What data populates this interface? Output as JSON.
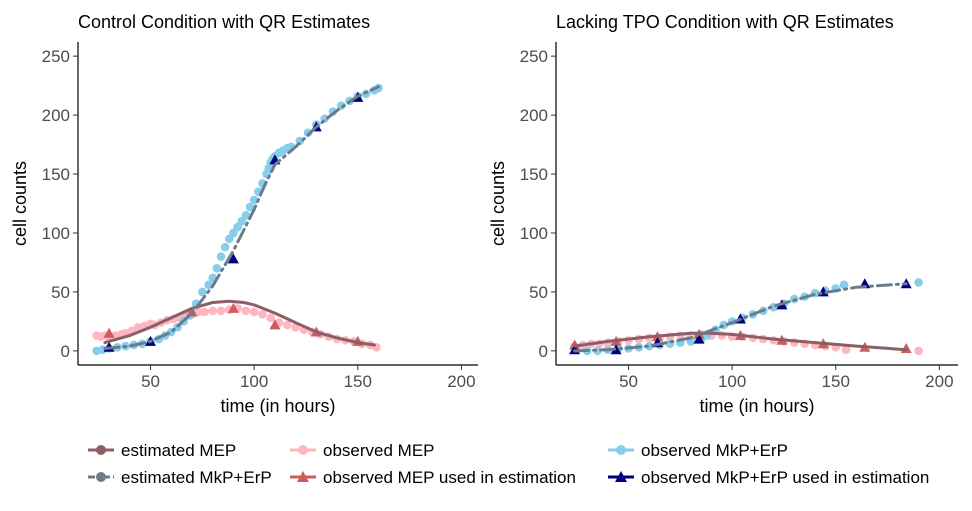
{
  "figure": {
    "legend": {
      "items": [
        {
          "key": "est_mep",
          "label": "estimated MEP"
        },
        {
          "key": "obs_mep",
          "label": "observed MEP"
        },
        {
          "key": "obs_mkp",
          "label": "observed MkP+ErP"
        },
        {
          "key": "est_mkp",
          "label": "estimated MkP+ErP"
        },
        {
          "key": "used_mep",
          "label": "observed MEP used in estimation"
        },
        {
          "key": "used_mkp",
          "label": "observed MkP+ErP used in estimation"
        }
      ]
    }
  },
  "chart_data": [
    {
      "type": "scatter",
      "title": "Control Condition with QR Estimates",
      "xlabel": "time (in hours)",
      "ylabel": "cell counts",
      "xlim": [
        15,
        208
      ],
      "ylim": [
        -12,
        262
      ],
      "xticks": [
        50,
        100,
        150,
        200
      ],
      "yticks": [
        0,
        50,
        100,
        150,
        200,
        250
      ],
      "series": [
        {
          "key": "obs_mep",
          "name": "observed MEP",
          "color": "#ffb6c1",
          "marker": "circle",
          "x": [
            24,
            26,
            28,
            30,
            33,
            36,
            38,
            41,
            44,
            47,
            50,
            52,
            55,
            58,
            61,
            64,
            67,
            70,
            73,
            76,
            80,
            84,
            88,
            92,
            96,
            100,
            104,
            108,
            112,
            116,
            120,
            124,
            128,
            132,
            136,
            140,
            144,
            148,
            152,
            156,
            159
          ],
          "y": [
            13,
            12,
            13,
            12,
            13,
            14,
            15,
            17,
            20,
            21,
            23,
            22,
            24,
            26,
            27,
            28,
            30,
            31,
            33,
            33,
            34,
            34,
            35,
            36,
            34,
            33,
            31,
            28,
            24,
            22,
            20,
            18,
            16,
            14,
            12,
            10,
            9,
            8,
            6,
            5,
            3
          ]
        },
        {
          "key": "obs_mkp",
          "name": "observed MkP+ErP",
          "color": "#87ceeb",
          "marker": "circle",
          "x": [
            24,
            27,
            30,
            34,
            38,
            42,
            46,
            50,
            54,
            57,
            60,
            63,
            66,
            69,
            72,
            75,
            78,
            80,
            82,
            84,
            86,
            88,
            90,
            92,
            94,
            96,
            98,
            100,
            102,
            104,
            106,
            107,
            108,
            109,
            110,
            112,
            114,
            116,
            118,
            122,
            126,
            130,
            134,
            138,
            142,
            146,
            150,
            154,
            158,
            160
          ],
          "y": [
            0,
            1,
            2,
            3,
            4,
            5,
            6,
            8,
            10,
            13,
            16,
            20,
            25,
            30,
            40,
            50,
            56,
            62,
            70,
            80,
            88,
            95,
            100,
            105,
            110,
            115,
            122,
            128,
            135,
            142,
            150,
            155,
            160,
            163,
            165,
            168,
            170,
            172,
            173,
            178,
            185,
            192,
            197,
            203,
            208,
            212,
            216,
            218,
            221,
            223
          ]
        },
        {
          "key": "used_mep",
          "name": "observed MEP used in estimation",
          "color": "#cd5c5c",
          "marker": "triangle",
          "x": [
            30,
            70,
            90,
            110,
            130,
            150
          ],
          "y": [
            15,
            33,
            36,
            22,
            16,
            8
          ]
        },
        {
          "key": "used_mkp",
          "name": "observed MkP+ErP used in estimation",
          "color": "#000080",
          "marker": "triangle",
          "x": [
            30,
            50,
            90,
            110,
            130,
            150
          ],
          "y": [
            3,
            8,
            78,
            162,
            190,
            215
          ]
        },
        {
          "key": "est_mep",
          "name": "estimated MEP",
          "color": "#8b5f65",
          "line": "solid",
          "x": [
            28,
            40,
            50,
            60,
            70,
            80,
            88,
            95,
            100,
            110,
            120,
            130,
            140,
            150,
            158
          ],
          "y": [
            7,
            13,
            20,
            28,
            36,
            41,
            42,
            41,
            39,
            32,
            24,
            16,
            11,
            7,
            5
          ]
        },
        {
          "key": "est_mkp",
          "name": "estimated MkP+ErP",
          "color": "#6c7b8b",
          "line": "dashdot",
          "x": [
            28,
            40,
            50,
            60,
            70,
            80,
            90,
            100,
            105,
            110,
            120,
            130,
            140,
            150,
            160
          ],
          "y": [
            2,
            4,
            8,
            16,
            32,
            55,
            85,
            120,
            140,
            158,
            173,
            190,
            204,
            216,
            224
          ]
        }
      ]
    },
    {
      "type": "scatter",
      "title": "Lacking TPO Condition with QR Estimates",
      "xlabel": "time (in hours)",
      "ylabel": "cell counts",
      "xlim": [
        15,
        209
      ],
      "ylim": [
        -12,
        262
      ],
      "xticks": [
        50,
        100,
        150,
        200
      ],
      "yticks": [
        0,
        50,
        100,
        150,
        200,
        250
      ],
      "series": [
        {
          "key": "obs_mep",
          "name": "observed MEP",
          "color": "#ffb6c1",
          "marker": "circle",
          "x": [
            24,
            28,
            32,
            36,
            40,
            45,
            50,
            55,
            60,
            65,
            70,
            75,
            80,
            85,
            90,
            95,
            100,
            105,
            110,
            115,
            120,
            125,
            130,
            135,
            140,
            145,
            150,
            155,
            190
          ],
          "y": [
            4,
            5,
            6,
            6,
            7,
            8,
            9,
            10,
            11,
            11,
            12,
            13,
            13,
            14,
            13,
            13,
            12,
            12,
            11,
            10,
            9,
            8,
            7,
            6,
            5,
            4,
            3,
            1,
            0
          ]
        },
        {
          "key": "obs_mkp",
          "name": "observed MkP+ErP",
          "color": "#87ceeb",
          "marker": "circle",
          "x": [
            30,
            35,
            40,
            45,
            50,
            55,
            60,
            65,
            70,
            75,
            80,
            85,
            88,
            92,
            96,
            100,
            105,
            110,
            115,
            120,
            125,
            130,
            135,
            140,
            145,
            150,
            154,
            190
          ],
          "y": [
            0,
            0,
            1,
            2,
            2,
            3,
            4,
            5,
            6,
            7,
            8,
            10,
            13,
            18,
            22,
            25,
            28,
            31,
            34,
            37,
            40,
            44,
            46,
            49,
            51,
            53,
            56,
            58
          ]
        },
        {
          "key": "used_mep",
          "name": "observed MEP used in estimation",
          "color": "#cd5c5c",
          "marker": "triangle",
          "x": [
            24,
            44,
            64,
            84,
            104,
            124,
            144,
            164,
            184
          ],
          "y": [
            5,
            8,
            12,
            14,
            13,
            9,
            6,
            3,
            2
          ]
        },
        {
          "key": "used_mkp",
          "name": "observed MkP+ErP used in estimation",
          "color": "#000080",
          "marker": "triangle",
          "x": [
            24,
            44,
            64,
            84,
            104,
            124,
            144,
            164,
            184
          ],
          "y": [
            1,
            1,
            7,
            10,
            27,
            39,
            50,
            57,
            57
          ]
        },
        {
          "key": "est_mep",
          "name": "estimated MEP",
          "color": "#8b5f65",
          "line": "solid",
          "x": [
            24,
            40,
            60,
            80,
            90,
            100,
            120,
            140,
            160,
            184
          ],
          "y": [
            4,
            8,
            12,
            15,
            15,
            14,
            10,
            7,
            4,
            1
          ]
        },
        {
          "key": "est_mkp",
          "name": "estimated MkP+ErP",
          "color": "#6c7b8b",
          "line": "dashdot",
          "x": [
            24,
            40,
            60,
            80,
            100,
            120,
            140,
            160,
            184
          ],
          "y": [
            0,
            1,
            4,
            11,
            24,
            38,
            48,
            54,
            57
          ]
        }
      ]
    }
  ]
}
